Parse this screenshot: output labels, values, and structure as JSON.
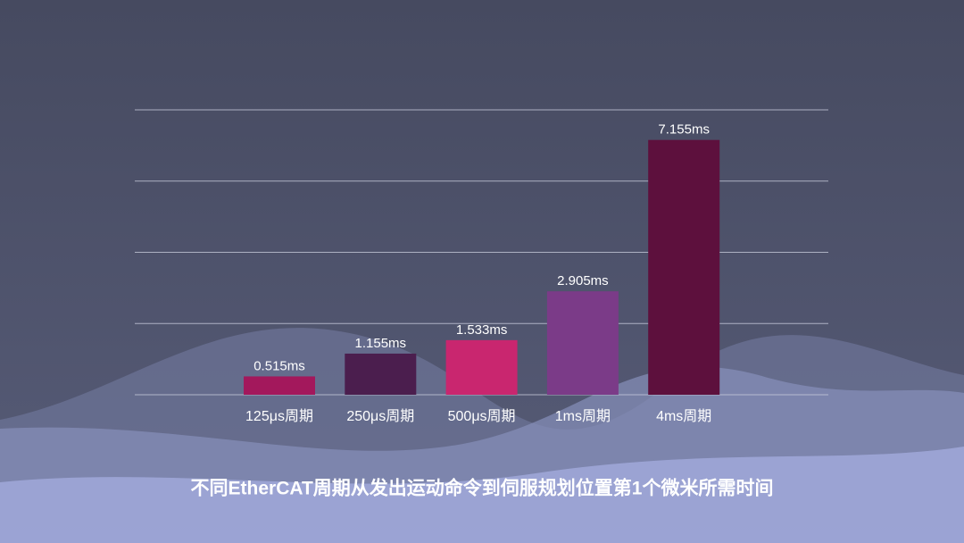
{
  "chart_data": {
    "type": "bar",
    "title": "不同EtherCAT周期从发出运动命令到伺服规划位置第1个微米所需时间",
    "categories": [
      "125μs周期",
      "250μs周期",
      "500μs周期",
      "1ms周期",
      "4ms周期"
    ],
    "values": [
      0.515,
      1.155,
      1.533,
      2.905,
      7.155
    ],
    "value_labels": [
      "0.515ms",
      "1.155ms",
      "1.533ms",
      "2.905ms",
      "7.155ms"
    ],
    "colors": [
      "#a3185c",
      "#4b1e4e",
      "#c9266f",
      "#7b3b88",
      "#5d103d"
    ],
    "ylim": [
      0,
      8
    ],
    "yticks": [
      0,
      2,
      4,
      6,
      8
    ],
    "grid": true
  }
}
